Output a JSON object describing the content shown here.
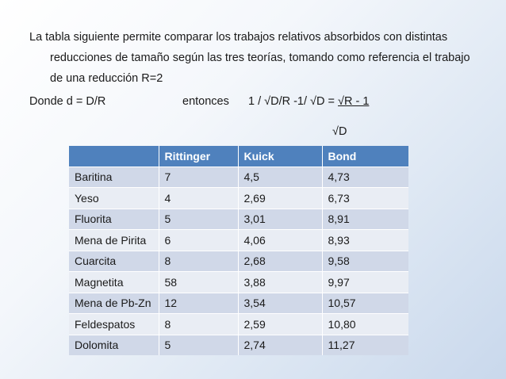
{
  "intro": {
    "line1": "La tabla siguiente permite comparar los trabajos relativos absorbidos con distintas",
    "line2": "reducciones de tamaño según las tres teorías, tomando como referencia el trabajo",
    "line3": "de una reducción R=2"
  },
  "formula": {
    "left": "Donde d = D/R",
    "middle": "entonces",
    "expr": "1 / √D/R -1/ √D = ",
    "result": "√R - 1",
    "denominator": "√D"
  },
  "table": {
    "headers": [
      "",
      "Rittinger",
      "Kuick",
      "Bond"
    ],
    "rows": [
      [
        "Baritina",
        "7",
        "4,5",
        "4,73"
      ],
      [
        "Yeso",
        "4",
        "2,69",
        "6,73"
      ],
      [
        "Fluorita",
        "5",
        "3,01",
        "8,91"
      ],
      [
        "Mena de Pirita",
        "6",
        "4,06",
        "8,93"
      ],
      [
        "Cuarcita",
        "8",
        "2,68",
        "9,58"
      ],
      [
        "Magnetita",
        "58",
        "3,88",
        "9,97"
      ],
      [
        "Mena de Pb-Zn",
        "12",
        "3,54",
        "10,57"
      ],
      [
        "Feldespatos",
        "8",
        "2,59",
        "10,80"
      ],
      [
        "Dolomita",
        "5",
        "2,74",
        "11,27"
      ]
    ]
  }
}
